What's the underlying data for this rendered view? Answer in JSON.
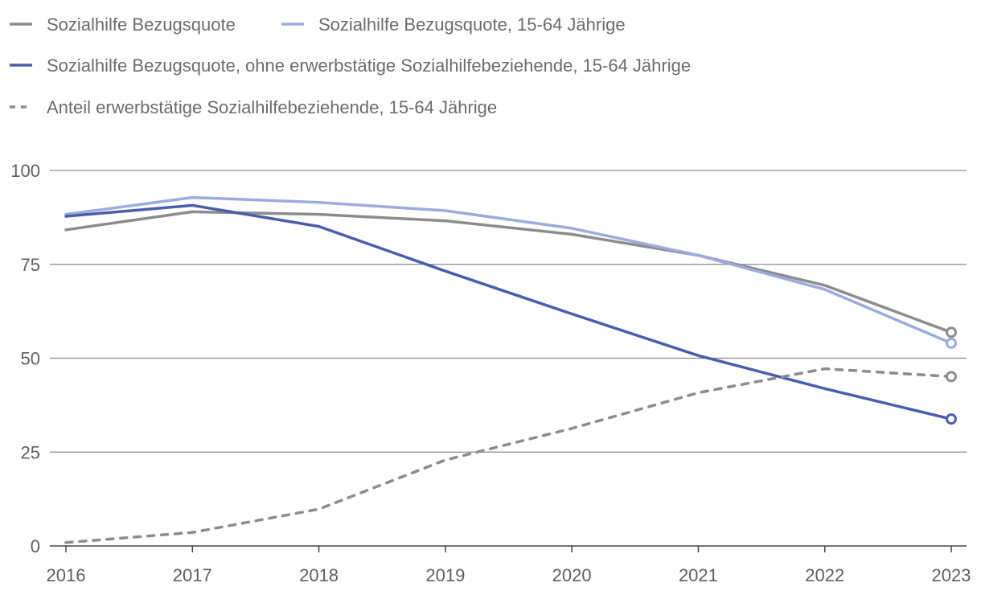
{
  "chart_data": {
    "type": "line",
    "title": "",
    "xlabel": "",
    "ylabel": "",
    "x": [
      2016,
      2017,
      2018,
      2019,
      2020,
      2021,
      2022,
      2023
    ],
    "x_tick_labels": [
      "2016",
      "2017",
      "2018",
      "2019",
      "2020",
      "2021",
      "2022",
      "2023"
    ],
    "ylim": [
      0,
      100
    ],
    "y_ticks": [
      0,
      25,
      50,
      75,
      100
    ],
    "y_tick_labels": [
      "0",
      "25",
      "50",
      "75",
      "100"
    ],
    "grid": true,
    "legend_position": "top-left",
    "series": [
      {
        "name": "Sozialhilfe Bezugsquote",
        "color": "#8c8c8c",
        "dashed": false,
        "values": [
          84.2,
          89.0,
          88.3,
          86.6,
          83.0,
          77.4,
          69.4,
          56.9
        ]
      },
      {
        "name": "Sozialhilfe Bezugsquote, 15-64 Jährige",
        "color": "#9aabe0",
        "dashed": false,
        "values": [
          88.3,
          92.8,
          91.5,
          89.3,
          84.6,
          77.4,
          68.3,
          54.0
        ]
      },
      {
        "name": "Sozialhilfe Bezugsquote, ohne erwerbstätige Sozialhilfebeziehende, 15-64 Jährige",
        "color": "#4a5dab",
        "dashed": false,
        "values": [
          87.8,
          90.7,
          85.1,
          73.2,
          61.8,
          50.7,
          41.9,
          33.8
        ]
      },
      {
        "name": "Anteil erwerbstätige Sozialhilfebeziehende, 15-64 Jährige",
        "color": "#8c8c8c",
        "dashed": true,
        "values": [
          0.9,
          3.6,
          9.8,
          22.9,
          31.3,
          40.8,
          47.2,
          45.1
        ]
      }
    ]
  }
}
